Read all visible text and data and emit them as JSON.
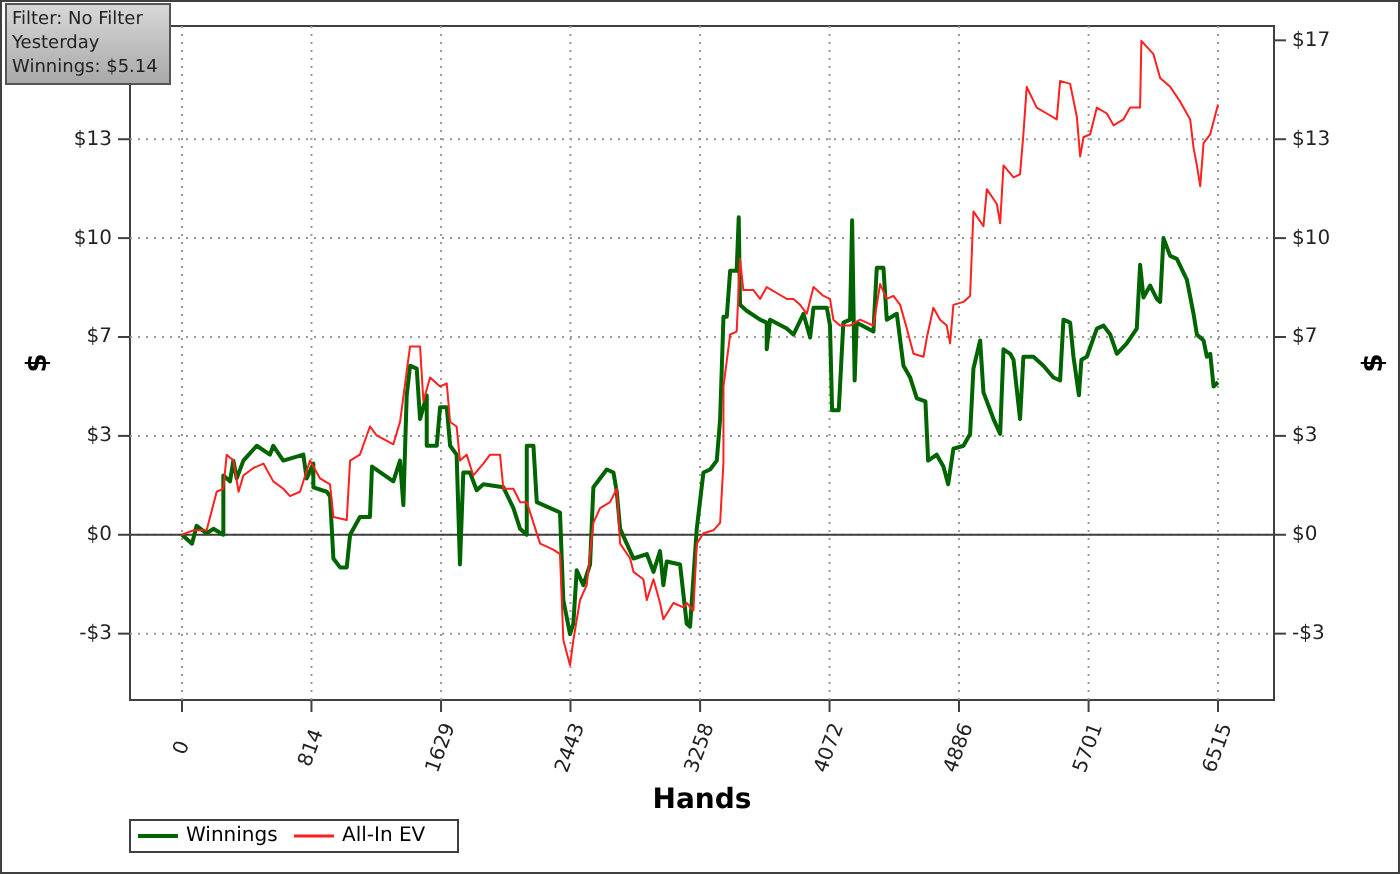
{
  "chart_data": {
    "type": "line",
    "xlabel": "Hands",
    "ylabel": "$",
    "y2label": "$",
    "annotations": [
      "Filter: No Filter",
      "Yesterday",
      "Winnings: $5.14"
    ],
    "xlim": [
      -327,
      6867
    ],
    "xticks": [
      0,
      814,
      1629,
      2443,
      3258,
      4072,
      4886,
      5701,
      6515
    ],
    "ylim": [
      -5.57,
      17.15
    ],
    "yticks": [
      {
        "value": -3.333,
        "label": "-$3"
      },
      {
        "value": 0,
        "label": "$0"
      },
      {
        "value": 3.333,
        "label": "$3"
      },
      {
        "value": 6.667,
        "label": "$7"
      },
      {
        "value": 10,
        "label": "$10"
      },
      {
        "value": 13.333,
        "label": "$13"
      }
    ],
    "y2lim": [
      -5.57,
      17.15
    ],
    "y2ticks": [
      {
        "value": -3.333,
        "label": "-$3"
      },
      {
        "value": 0,
        "label": "$0"
      },
      {
        "value": 3.333,
        "label": "$3"
      },
      {
        "value": 6.667,
        "label": "$7"
      },
      {
        "value": 10,
        "label": "$10"
      },
      {
        "value": 13.333,
        "label": "$13"
      },
      {
        "value": 16.667,
        "label": "$17"
      }
    ],
    "grid": true,
    "legend": "bottom left",
    "marker": "none",
    "line_style": "solid",
    "ref_lines": [
      {
        "axis": "y",
        "value": 0,
        "color": "#404040"
      }
    ],
    "series": [
      {
        "name": "Winnings",
        "color": "#006400",
        "x": [
          0,
          63,
          92,
          155,
          197,
          260,
          260,
          302,
          323,
          344,
          386,
          470,
          553,
          574,
          637,
          763,
          784,
          826,
          826,
          910,
          931,
          952,
          994,
          1036,
          1057,
          1119,
          1182,
          1195,
          1329,
          1371,
          1392,
          1413,
          1434,
          1476,
          1497,
          1539,
          1539,
          1602,
          1623,
          1665,
          1686,
          1727,
          1748,
          1769,
          1811,
          1853,
          1895,
          2021,
          2084,
          2126,
          2168,
          2168,
          2210,
          2231,
          2377,
          2398,
          2440,
          2461,
          2482,
          2524,
          2566,
          2587,
          2671,
          2713,
          2734,
          2755,
          2797,
          2839,
          2923,
          2965,
          3006,
          3027,
          3048,
          3132,
          3174,
          3195,
          3237,
          3279,
          3321,
          3363,
          3384,
          3405,
          3426,
          3447,
          3488,
          3501,
          3509,
          3551,
          3635,
          3677,
          3677,
          3698,
          3803,
          3845,
          3908,
          3950,
          3971,
          4055,
          4075,
          4088,
          4130,
          4159,
          4201,
          4214,
          4230,
          4243,
          4348,
          4369,
          4411,
          4432,
          4495,
          4537,
          4579,
          4621,
          4675,
          4692,
          4746,
          4788,
          4818,
          4851,
          4914,
          4956,
          4977,
          5019,
          5040,
          5103,
          5145,
          5166,
          5208,
          5229,
          5270,
          5291,
          5354,
          5417,
          5480,
          5522,
          5543,
          5585,
          5606,
          5640,
          5656,
          5690,
          5753,
          5795,
          5837,
          5879,
          5941,
          6004,
          6025,
          6046,
          6088,
          6130,
          6151,
          6172,
          6214,
          6256,
          6319,
          6361,
          6382,
          6424,
          6445,
          6466,
          6487,
          6515
        ],
        "values": [
          0,
          -0.3,
          0.3,
          0.05,
          0.2,
          0,
          2.0,
          1.8,
          2.5,
          1.9,
          2.5,
          3.0,
          2.7,
          3.0,
          2.5,
          2.7,
          1.9,
          2.4,
          1.6,
          1.45,
          1.3,
          -0.8,
          -1.1,
          -1.1,
          0,
          0.6,
          0.6,
          2.3,
          1.8,
          2.5,
          1.0,
          4.7,
          5.7,
          5.6,
          3.9,
          4.7,
          3.0,
          3.0,
          4.3,
          4.3,
          3.0,
          2.7,
          -1.0,
          2.1,
          2.1,
          1.5,
          1.7,
          1.6,
          0.9,
          0.2,
          0,
          3.0,
          3.0,
          1.1,
          0.75,
          -2.2,
          -3.35,
          -3.0,
          -1.2,
          -1.7,
          -1.0,
          1.6,
          2.2,
          2.1,
          1.45,
          0.2,
          -0.3,
          -0.8,
          -0.65,
          -1.25,
          -0.55,
          -1.7,
          -0.9,
          -1.0,
          -3.0,
          -3.1,
          0.2,
          2.1,
          2.2,
          2.5,
          3.9,
          7.35,
          7.35,
          8.9,
          8.9,
          10.7,
          7.75,
          7.55,
          7.25,
          7.15,
          6.25,
          7.25,
          6.95,
          6.75,
          7.45,
          6.65,
          7.65,
          7.65,
          7.05,
          4.2,
          4.2,
          7.15,
          7.25,
          10.6,
          5.2,
          7.15,
          6.85,
          9.0,
          9.0,
          7.25,
          7.45,
          5.7,
          5.3,
          4.6,
          4.5,
          2.5,
          2.7,
          2.3,
          1.7,
          2.9,
          3.0,
          3.4,
          5.6,
          6.55,
          4.8,
          3.9,
          3.4,
          6.25,
          6.1,
          5.9,
          3.9,
          6.0,
          6.0,
          5.7,
          5.3,
          5.2,
          7.25,
          7.15,
          6.0,
          4.7,
          5.9,
          6.0,
          6.95,
          7.05,
          6.75,
          6.1,
          6.45,
          6.95,
          9.1,
          8.0,
          8.4,
          7.95,
          7.85,
          10.0,
          9.4,
          9.3,
          8.6,
          7.45,
          6.75,
          6.55,
          6.0,
          6.1,
          5.0,
          5.14
        ]
      },
      {
        "name": "All-In EV",
        "color": "#ff2020",
        "x": [
          0,
          71,
          155,
          218,
          260,
          281,
          323,
          356,
          386,
          449,
          512,
          574,
          637,
          679,
          742,
          805,
          868,
          931,
          952,
          1036,
          1057,
          1119,
          1182,
          1224,
          1329,
          1371,
          1434,
          1497,
          1518,
          1560,
          1623,
          1665,
          1686,
          1727,
          1748,
          1790,
          1832,
          1895,
          1937,
          2000,
          2021,
          2084,
          2126,
          2168,
          2210,
          2252,
          2335,
          2377,
          2398,
          2440,
          2461,
          2503,
          2545,
          2587,
          2629,
          2692,
          2734,
          2755,
          2818,
          2839,
          2901,
          2923,
          2965,
          3006,
          3027,
          3090,
          3153,
          3174,
          3216,
          3237,
          3279,
          3342,
          3384,
          3405,
          3405,
          3447,
          3488,
          3509,
          3530,
          3593,
          3635,
          3677,
          3740,
          3803,
          3845,
          3887,
          3929,
          3971,
          4034,
          4075,
          4096,
          4138,
          4201,
          4264,
          4348,
          4390,
          4432,
          4474,
          4516,
          4558,
          4600,
          4663,
          4684,
          4725,
          4767,
          4809,
          4830,
          4851,
          4914,
          4956,
          4977,
          5040,
          5061,
          5124,
          5145,
          5166,
          5229,
          5270,
          5291,
          5312,
          5375,
          5438,
          5501,
          5522,
          5585,
          5627,
          5648,
          5669,
          5711,
          5753,
          5816,
          5858,
          5920,
          5962,
          6025,
          6033,
          6109,
          6151,
          6214,
          6277,
          6340,
          6361,
          6382,
          6403,
          6424,
          6466,
          6515
        ],
        "values": [
          0,
          0.15,
          0.15,
          1.45,
          1.55,
          2.7,
          2.5,
          1.45,
          2.0,
          2.25,
          2.4,
          1.8,
          1.55,
          1.3,
          1.45,
          2.5,
          1.9,
          1.7,
          0.6,
          0.5,
          2.5,
          2.7,
          3.65,
          3.35,
          3.05,
          3.8,
          6.35,
          6.35,
          4.5,
          5.3,
          5.0,
          5.1,
          3.8,
          3.65,
          2.5,
          2.7,
          2.0,
          2.4,
          2.7,
          2.7,
          1.55,
          1.55,
          1.1,
          1.1,
          0.4,
          -0.3,
          -0.5,
          -0.65,
          -3.55,
          -4.4,
          -3.55,
          -2.2,
          -1.7,
          0.4,
          0.9,
          1.1,
          1.55,
          -0.3,
          -0.8,
          -1.25,
          -1.5,
          -2.2,
          -1.5,
          -2.3,
          -2.85,
          -2.3,
          -2.45,
          -2.3,
          -2.55,
          -0.3,
          0.05,
          0.15,
          0.4,
          2.45,
          5.0,
          6.75,
          6.85,
          9.3,
          8.25,
          8.25,
          7.95,
          8.35,
          8.15,
          7.95,
          7.95,
          7.75,
          7.45,
          8.35,
          8.05,
          7.95,
          7.25,
          7.05,
          7.05,
          7.25,
          7.05,
          8.45,
          7.95,
          8.05,
          7.75,
          6.95,
          6.1,
          6.0,
          6.65,
          7.65,
          7.25,
          7.05,
          6.45,
          7.75,
          7.85,
          8.05,
          10.9,
          10.4,
          11.65,
          11.15,
          10.5,
          12.45,
          12.05,
          12.15,
          13.5,
          15.1,
          14.4,
          14.2,
          14.0,
          15.3,
          15.2,
          14.1,
          12.75,
          13.4,
          13.5,
          14.4,
          14.2,
          13.8,
          14.0,
          14.4,
          14.4,
          16.65,
          16.2,
          15.4,
          15.1,
          14.6,
          14.0,
          13.05,
          12.45,
          11.75,
          13.2,
          13.5,
          14.5
        ]
      }
    ]
  }
}
